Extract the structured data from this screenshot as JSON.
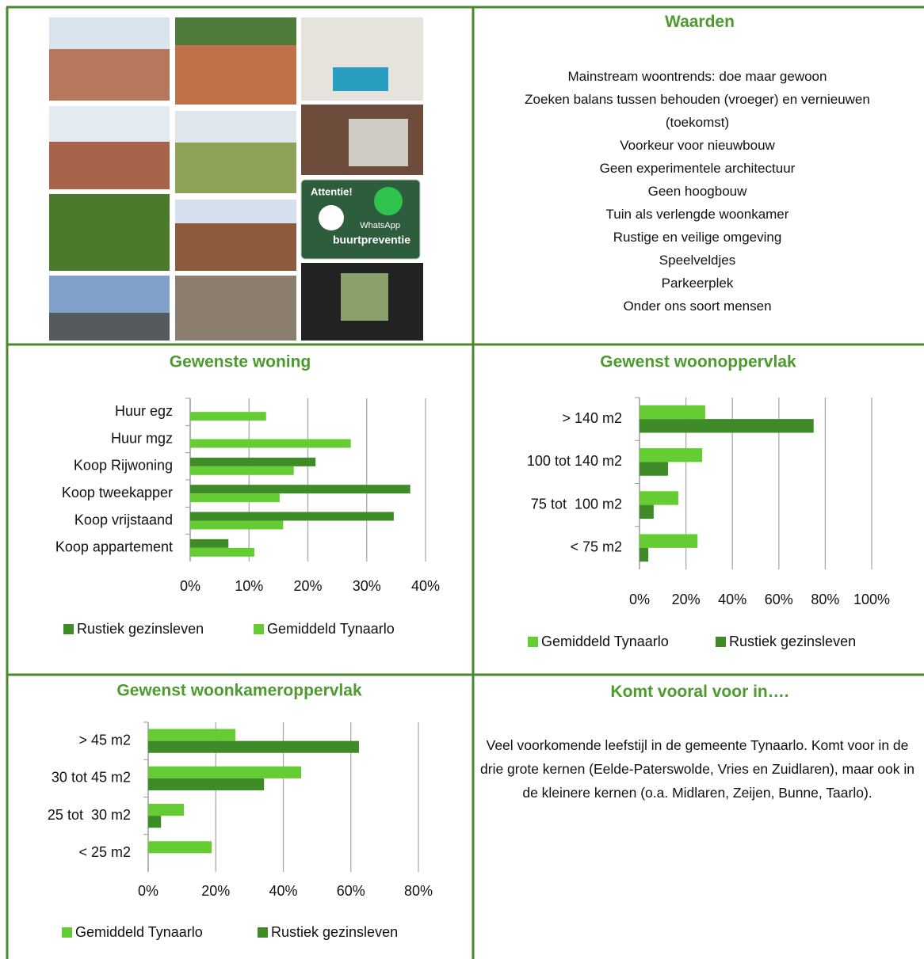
{
  "photos": {
    "sign": {
      "top": "Attentie!",
      "app": "WhatsApp",
      "bottom": "buurtpreventie"
    }
  },
  "values_panel": {
    "title": "Waarden",
    "items": [
      "Mainstream woontrends: doe maar gewoon",
      "Zoeken balans tussen behouden (vroeger) en vernieuwen (toekomst)",
      "Voorkeur voor nieuwbouw",
      "Geen experimentele architectuur",
      "Geen hoogbouw",
      "Tuin als verlengde woonkamer",
      "Rustige en veilige omgeving",
      "Speelveldjes",
      "Parkeerplek",
      "Onder ons soort mensen"
    ]
  },
  "location_panel": {
    "title": "Komt vooral voor in….",
    "text": "Veel voorkomende leefstijl in de gemeente Tynaarlo. Komt voor in de drie grote kernen (Eelde-Paterswolde, Vries en Zuidlaren), maar ook in de kleinere kernen (o.a. Midlaren, Zeijen, Bunne, Taarlo)."
  },
  "chart_data": [
    {
      "type": "hbar",
      "title": "Gewenste woning",
      "categories": [
        "Huur egz",
        "Huur mgz",
        "Koop Rijwoning",
        "Koop tweekapper",
        "Koop vrijstaand",
        "Koop appartement"
      ],
      "series": [
        {
          "name": "Rustiek gezinsleven",
          "color": "#3e8b27",
          "values": [
            0,
            0,
            21.3,
            37.4,
            34.6,
            6.5
          ]
        },
        {
          "name": "Gemiddeld Tynaarlo",
          "color": "#66cc33",
          "values": [
            12.9,
            27.3,
            17.6,
            15.2,
            15.8,
            10.9
          ]
        }
      ],
      "xlim": [
        0,
        40
      ],
      "xticks": [
        {
          "value": 0,
          "label": "0%"
        },
        {
          "value": 10,
          "label": "10%"
        },
        {
          "value": 20,
          "label": "20%"
        },
        {
          "value": 30,
          "label": "30%"
        },
        {
          "value": 40,
          "label": "40%"
        }
      ],
      "grid": true
    },
    {
      "type": "hbar",
      "title": "Gewenst woonoppervlak",
      "categories": [
        "> 140 m2",
        "100 tot 140 m2",
        "75 tot  100 m2",
        "< 75 m2"
      ],
      "series": [
        {
          "name": "Gemiddeld Tynaarlo",
          "color": "#66cc33",
          "values": [
            28.3,
            27,
            16.7,
            25
          ]
        },
        {
          "name": "Rustiek gezinsleven",
          "color": "#3e8b27",
          "values": [
            75,
            12.3,
            6.1,
            3.8
          ]
        }
      ],
      "xlim": [
        0,
        100
      ],
      "xticks": [
        {
          "value": 0,
          "label": "0%"
        },
        {
          "value": 20,
          "label": "20%"
        },
        {
          "value": 40,
          "label": "40%"
        },
        {
          "value": 60,
          "label": "60%"
        },
        {
          "value": 80,
          "label": "80%"
        },
        {
          "value": 100,
          "label": "100%"
        }
      ],
      "grid": true
    },
    {
      "type": "hbar",
      "title": "Gewenst woonkameroppervlak",
      "categories": [
        "> 45 m2",
        "30 tot 45 m2",
        "25 tot  30 m2",
        "< 25 m2"
      ],
      "series": [
        {
          "name": "Gemiddeld Tynaarlo",
          "color": "#66cc33",
          "values": [
            25.8,
            45.3,
            10.6,
            18.8
          ]
        },
        {
          "name": "Rustiek gezinsleven",
          "color": "#3e8b27",
          "values": [
            62.4,
            34.3,
            3.8,
            0
          ]
        }
      ],
      "xlim": [
        0,
        80
      ],
      "xticks": [
        {
          "value": 0,
          "label": "0%"
        },
        {
          "value": 20,
          "label": "20%"
        },
        {
          "value": 40,
          "label": "40%"
        },
        {
          "value": 60,
          "label": "60%"
        },
        {
          "value": 80,
          "label": "80%"
        }
      ],
      "grid": true
    }
  ]
}
